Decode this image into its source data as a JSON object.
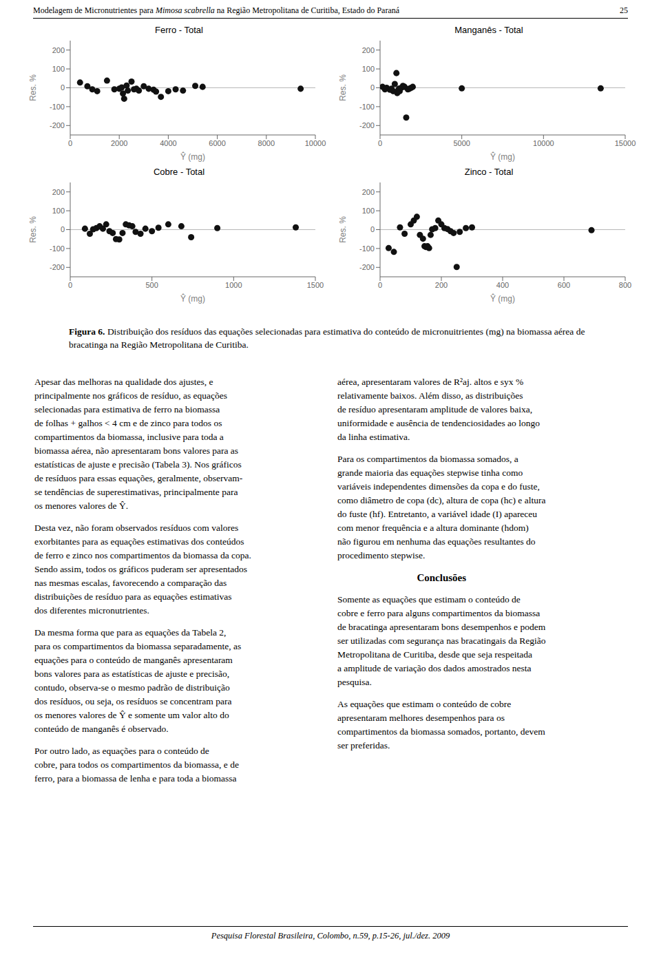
{
  "page_header": [
    "Modelagem de Micronutrientes para ",
    "Mimosa scabrella",
    " na Região Metropolitana de Curitiba, Estado do Paraná"
  ],
  "page_number": "25",
  "chart_data": [
    {
      "type": "scatter",
      "title": "Ferro - Total",
      "xlabel": "Ŷ (mg)",
      "ylabel": "Res. %",
      "color": "#111111",
      "grid": false,
      "xlim": [
        0,
        10000
      ],
      "ylim": [
        -250,
        250
      ],
      "xticks": [
        0,
        2000,
        4000,
        6000,
        8000,
        10000
      ],
      "yticks": [
        -200,
        -100,
        0,
        100,
        200
      ],
      "x": [
        400,
        700,
        900,
        1100,
        1500,
        1800,
        2000,
        2100,
        2150,
        2200,
        2300,
        2350,
        2500,
        2600,
        2700,
        2800,
        3000,
        3200,
        3400,
        3500,
        3700,
        4000,
        4300,
        4600,
        5100,
        5400,
        9400
      ],
      "values": [
        28,
        8,
        -8,
        -18,
        38,
        -8,
        -5,
        2,
        -30,
        -58,
        12,
        -15,
        33,
        -8,
        -5,
        -15,
        8,
        -5,
        -10,
        -20,
        -48,
        -18,
        -8,
        -15,
        10,
        5,
        -5
      ]
    },
    {
      "type": "scatter",
      "title": "Manganês - Total",
      "xlabel": "Ŷ (mg)",
      "ylabel": "Res. %",
      "color": "#111111",
      "grid": false,
      "xlim": [
        0,
        15000
      ],
      "ylim": [
        -250,
        250
      ],
      "xticks": [
        0,
        5000,
        10000,
        15000
      ],
      "yticks": [
        -200,
        -100,
        0,
        100,
        200
      ],
      "x": [
        150,
        300,
        400,
        600,
        700,
        800,
        900,
        1000,
        1050,
        1100,
        1150,
        1200,
        1300,
        1400,
        1500,
        1600,
        1700,
        1800,
        1900,
        2000,
        5000,
        13500
      ],
      "values": [
        5,
        -8,
        0,
        -10,
        -5,
        -18,
        20,
        78,
        -28,
        -15,
        -5,
        -18,
        0,
        10,
        5,
        -158,
        -8,
        -5,
        0,
        5,
        -3,
        -3
      ]
    },
    {
      "type": "scatter",
      "title": "Cobre - Total",
      "xlabel": "Ŷ (mg)",
      "ylabel": "Res. %",
      "color": "#111111",
      "grid": false,
      "xlim": [
        0,
        1500
      ],
      "ylim": [
        -250,
        250
      ],
      "xticks": [
        0,
        500,
        1000,
        1500
      ],
      "yticks": [
        -200,
        -100,
        0,
        100,
        200
      ],
      "x": [
        90,
        120,
        140,
        160,
        180,
        200,
        220,
        240,
        260,
        280,
        300,
        320,
        340,
        360,
        380,
        400,
        430,
        460,
        500,
        540,
        600,
        680,
        740,
        900,
        1380
      ],
      "values": [
        5,
        -22,
        2,
        8,
        18,
        5,
        28,
        -8,
        -18,
        -50,
        -52,
        -18,
        28,
        23,
        18,
        -12,
        -22,
        5,
        -8,
        10,
        28,
        18,
        -40,
        8,
        12
      ]
    },
    {
      "type": "scatter",
      "title": "Zinco - Total",
      "xlabel": "Ŷ (mg)",
      "ylabel": "Res. %",
      "color": "#111111",
      "grid": false,
      "xlim": [
        0,
        800
      ],
      "ylim": [
        -250,
        250
      ],
      "xticks": [
        0,
        200,
        400,
        600,
        800
      ],
      "yticks": [
        -200,
        -100,
        0,
        100,
        200
      ],
      "x": [
        28,
        45,
        65,
        80,
        100,
        110,
        120,
        130,
        140,
        145,
        150,
        155,
        160,
        165,
        170,
        180,
        190,
        200,
        210,
        220,
        230,
        240,
        250,
        260,
        280,
        300,
        690
      ],
      "values": [
        -98,
        -118,
        12,
        -22,
        28,
        48,
        68,
        -28,
        -48,
        -88,
        -92,
        -88,
        -98,
        -28,
        2,
        8,
        48,
        28,
        8,
        3,
        -8,
        -18,
        -198,
        -12,
        8,
        12,
        -3
      ]
    }
  ],
  "caption": [
    "Figura 6.",
    " Distribuição dos resíduos das equações selecionadas para estimativa do conteúdo de micronuitrientes (mg) na biomassa aérea de bracatinga na Região Metropolitana de Curitiba."
  ],
  "body_left": [
    [
      "Apesar das melhoras na qualidade dos ajustes, e",
      "principalmente nos gráficos de resíduo, as equações",
      "selecionadas para estimativa de ferro na biomassa",
      "de folhas + galhos < 4 cm e de zinco para todos os",
      "compartimentos da biomassa, inclusive para toda a",
      "biomassa aérea, não apresentaram bons valores para as",
      "estatísticas de ajuste e precisão (Tabela 3). Nos gráficos",
      "de resíduos para essas equações, geralmente, observam-",
      "se tendências de superestimativas, principalmente para",
      "os menores valores de Ŷ."
    ],
    [
      "Desta vez, não foram observados resíduos com valores",
      "exorbitantes para as equações estimativas dos conteúdos",
      "de ferro e zinco nos compartimentos da biomassa da copa.",
      "Sendo assim, todos os gráficos puderam ser apresentados",
      "nas mesmas escalas, favorecendo a comparação das",
      "distribuições de resíduo para as equações estimativas",
      "dos diferentes micronutrientes."
    ],
    [
      "Da mesma forma que para as equações da Tabela 2,",
      "para os compartimentos da biomassa separadamente, as",
      "equações para o conteúdo de manganês apresentaram",
      "bons valores para as estatísticas de ajuste e precisão,",
      "contudo, observa-se o mesmo padrão de distribuição",
      "dos resíduos, ou seja, os resíduos se concentram para",
      "os menores valores de Ŷ e somente um valor alto do",
      "conteúdo de manganês é observado."
    ],
    [
      "Por outro lado, as equações para o conteúdo de",
      "cobre, para todos os compartimentos da biomassa, e de",
      "ferro, para a biomassa de lenha e para toda a biomassa"
    ]
  ],
  "body_right": [
    [
      "aérea, apresentaram valores de R²aj. altos e syx %",
      "relativamente baixos. Além disso, as distribuições",
      "de resíduo apresentaram amplitude de valores baixa,",
      "uniformidade e ausência de tendenciosidades ao longo",
      "da linha estimativa."
    ],
    [
      "Para os compartimentos da biomassa somados, a",
      "grande maioria das equações stepwise tinha como",
      "variáveis independentes dimensões da copa e do fuste,",
      "como diâmetro de copa (dc), altura de copa (hc) e altura",
      "do fuste (hf). Entretanto, a variável idade (I) apareceu",
      "com menor frequência e a altura dominante (hdom)",
      "não figurou em nenhuma das equações resultantes do",
      "procedimento stepwise."
    ],
    "Conclusões",
    [
      "Somente as equações que estimam o conteúdo de",
      "cobre e ferro para alguns compartimentos da biomassa",
      "de bracatinga apresentaram bons desempenhos e podem",
      "ser utilizadas com segurança nas bracatingais da Região",
      "Metropolitana de Curitiba, desde que seja respeitada",
      "a amplitude de variação dos dados amostrados nesta",
      "pesquisa."
    ],
    [
      "As equações que estimam o conteúdo de cobre",
      "apresentaram melhores desempenhos para os",
      "compartimentos da biomassa somados, portanto, devem",
      "ser preferidas."
    ]
  ],
  "footer": "Pesquisa Florestal Brasileira, Colombo, n.59, p.15-26, jul./dez. 2009"
}
